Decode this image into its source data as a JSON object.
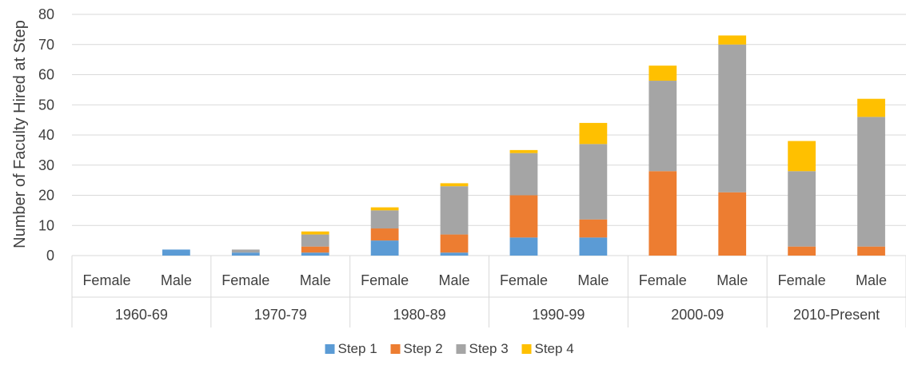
{
  "chart_data": {
    "type": "bar",
    "stacked": true,
    "title": "",
    "ylabel": "Number of Faculty Hired at Step",
    "xlabel": "",
    "ylim": [
      0,
      80
    ],
    "yticks": [
      0,
      10,
      20,
      30,
      40,
      50,
      60,
      70,
      80
    ],
    "grid": true,
    "legend_position": "bottom",
    "groups": [
      "1960-69",
      "1970-79",
      "1980-89",
      "1990-99",
      "2000-09",
      "2010-Present"
    ],
    "categories": [
      "Female",
      "Male",
      "Female",
      "Male",
      "Female",
      "Male",
      "Female",
      "Male",
      "Female",
      "Male",
      "Female",
      "Male"
    ],
    "series": [
      {
        "name": "Step 1",
        "color": "#5B9BD5",
        "values": [
          0,
          2,
          1,
          1,
          5,
          1,
          6,
          6,
          0,
          0,
          0,
          0
        ]
      },
      {
        "name": "Step 2",
        "color": "#ED7D31",
        "values": [
          0,
          0,
          0,
          2,
          4,
          6,
          14,
          6,
          28,
          21,
          3,
          3
        ]
      },
      {
        "name": "Step 3",
        "color": "#A5A5A5",
        "values": [
          0,
          0,
          1,
          4,
          6,
          16,
          14,
          25,
          30,
          49,
          25,
          43
        ]
      },
      {
        "name": "Step 4",
        "color": "#FFC000",
        "values": [
          0,
          0,
          0,
          1,
          1,
          1,
          1,
          7,
          5,
          3,
          10,
          6
        ]
      }
    ]
  }
}
